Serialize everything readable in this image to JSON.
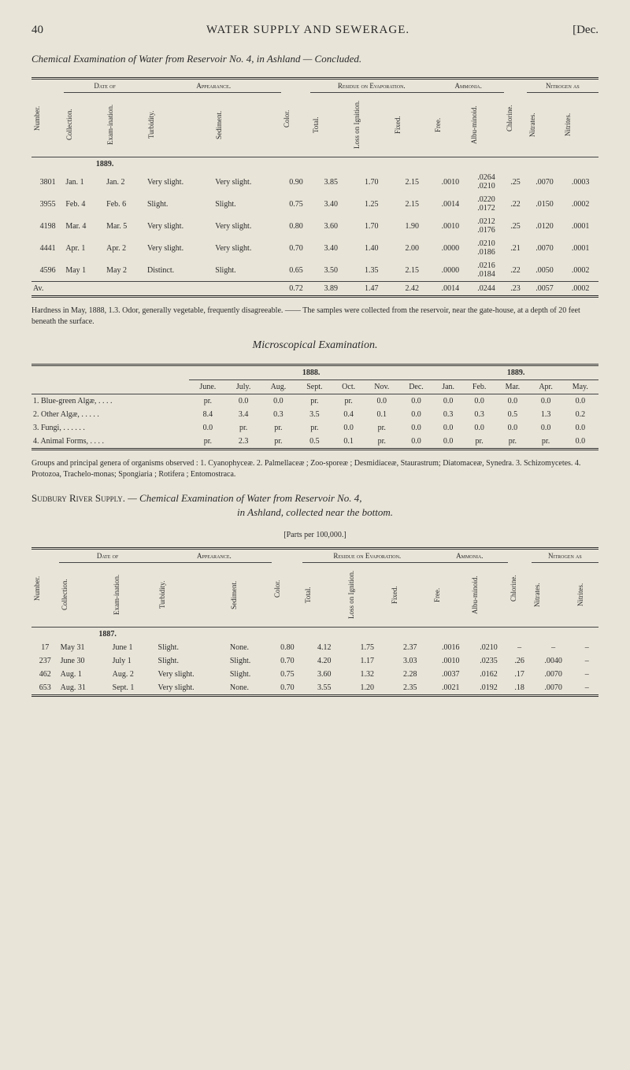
{
  "page": {
    "number": "40",
    "title": "WATER SUPPLY AND SEWERAGE.",
    "date_tag": "[Dec."
  },
  "title_line": "Chemical Examination of Water from Reservoir No. 4, in Ashland — Concluded.",
  "table1": {
    "group_heads": {
      "date_of": "Date of",
      "appearance": "Appearance.",
      "residue": "Residue on Evaporation.",
      "ammonia": "Ammonia.",
      "nitrogen": "Nitrogen as"
    },
    "cols": {
      "number": "Number.",
      "collection": "Collection.",
      "examination": "Exam-ination.",
      "turbidity": "Turbidity.",
      "sediment": "Sediment.",
      "color": "Color.",
      "total": "Total.",
      "loss": "Loss on Ignition.",
      "fixed": "Fixed.",
      "free": "Free.",
      "albuminoid": "Albu-minoid.",
      "chlorine": "Chlorine.",
      "nitrates": "Nitrates.",
      "nitrites": "Nitrites."
    },
    "year_tag": "1889.",
    "rows": [
      {
        "num": "3801",
        "coll": "Jan. 1",
        "exam": "Jan. 2",
        "turb": "Very slight.",
        "sed": "Very slight.",
        "col": "0.90",
        "tot": "3.85",
        "loss": "1.70",
        "fix": "2.15",
        "free": ".0010",
        "alb": ".0264\n.0210",
        "chl": ".25",
        "nitra": ".0070",
        "nitri": ".0003"
      },
      {
        "num": "3955",
        "coll": "Feb. 4",
        "exam": "Feb. 6",
        "turb": "Slight.",
        "sed": "Slight.",
        "col": "0.75",
        "tot": "3.40",
        "loss": "1.25",
        "fix": "2.15",
        "free": ".0014",
        "alb": ".0220\n.0172",
        "chl": ".22",
        "nitra": ".0150",
        "nitri": ".0002"
      },
      {
        "num": "4198",
        "coll": "Mar. 4",
        "exam": "Mar. 5",
        "turb": "Very slight.",
        "sed": "Very slight.",
        "col": "0.80",
        "tot": "3.60",
        "loss": "1.70",
        "fix": "1.90",
        "free": ".0010",
        "alb": ".0212\n.0176",
        "chl": ".25",
        "nitra": ".0120",
        "nitri": ".0001"
      },
      {
        "num": "4441",
        "coll": "Apr. 1",
        "exam": "Apr. 2",
        "turb": "Very slight.",
        "sed": "Very slight.",
        "col": "0.70",
        "tot": "3.40",
        "loss": "1.40",
        "fix": "2.00",
        "free": ".0000",
        "alb": ".0210\n.0186",
        "chl": ".21",
        "nitra": ".0070",
        "nitri": ".0001"
      },
      {
        "num": "4596",
        "coll": "May 1",
        "exam": "May 2",
        "turb": "Distinct.",
        "sed": "Slight.",
        "col": "0.65",
        "tot": "3.50",
        "loss": "1.35",
        "fix": "2.15",
        "free": ".0000",
        "alb": ".0216\n.0184",
        "chl": ".22",
        "nitra": ".0050",
        "nitri": ".0002"
      }
    ],
    "av": {
      "label": "Av.",
      "col": "0.72",
      "tot": "3.89",
      "loss": "1.47",
      "fix": "2.42",
      "free": ".0014",
      "alb": ".0244",
      "chl": ".23",
      "nitra": ".0057",
      "nitri": ".0002"
    }
  },
  "note1": "Hardness in May, 1888, 1.3. Odor, generally vegetable, frequently disagreeable. —— The samples were collected from the reservoir, near the gate-house, at a depth of 20 feet beneath the surface.",
  "section2_title": "Microscopical Examination.",
  "table2": {
    "year1": "1888.",
    "year2": "1889.",
    "months1": [
      "June.",
      "July.",
      "Aug.",
      "Sept.",
      "Oct.",
      "Nov.",
      "Dec."
    ],
    "months2": [
      "Jan.",
      "Feb.",
      "Mar.",
      "Apr.",
      "May."
    ],
    "rows": [
      {
        "label": "1. Blue-green Algæ, . . . .",
        "v": [
          "pr.",
          "0.0",
          "0.0",
          "pr.",
          "pr.",
          "0.0",
          "0.0",
          "0.0",
          "0.0",
          "0.0",
          "0.0",
          "0.0"
        ]
      },
      {
        "label": "2. Other Algæ, . . . . .",
        "v": [
          "8.4",
          "3.4",
          "0.3",
          "3.5",
          "0.4",
          "0.1",
          "0.0",
          "0.3",
          "0.3",
          "0.5",
          "1.3",
          "0.2"
        ]
      },
      {
        "label": "3. Fungi, . . . . . .",
        "v": [
          "0.0",
          "pr.",
          "pr.",
          "pr.",
          "0.0",
          "pr.",
          "0.0",
          "0.0",
          "0.0",
          "0.0",
          "0.0",
          "0.0"
        ]
      },
      {
        "label": "4. Animal Forms, . . . .",
        "v": [
          "pr.",
          "2.3",
          "pr.",
          "0.5",
          "0.1",
          "pr.",
          "0.0",
          "0.0",
          "pr.",
          "pr.",
          "pr.",
          "0.0"
        ]
      }
    ]
  },
  "note2": "Groups and principal genera of organisms observed : 1. Cyanophyceæ. 2. Palmellaceæ ; Zoo-sporeæ ; Desmidiaceæ, Staurastrum; Diatomaceæ, Synedra. 3. Schizomycetes. 4. Protozoa, Trachelo-monas; Spongiaria ; Rotifera ; Entomostraca.",
  "title_line3a": "Sudbury River Supply. — Chemical Examination of Water from Reservoir No. 4,",
  "title_line3b": "in Ashland, collected near the bottom.",
  "title_line3c": "[Parts per 100,000.]",
  "table3": {
    "year_tag": "1887.",
    "rows": [
      {
        "num": "17",
        "coll": "May 31",
        "exam": "June 1",
        "turb": "Slight.",
        "sed": "None.",
        "col": "0.80",
        "tot": "4.12",
        "loss": "1.75",
        "fix": "2.37",
        "free": ".0016",
        "alb": ".0210",
        "chl": "–",
        "nitra": "–",
        "nitri": "–"
      },
      {
        "num": "237",
        "coll": "June 30",
        "exam": "July 1",
        "turb": "Slight.",
        "sed": "Slight.",
        "col": "0.70",
        "tot": "4.20",
        "loss": "1.17",
        "fix": "3.03",
        "free": ".0010",
        "alb": ".0235",
        "chl": ".26",
        "nitra": ".0040",
        "nitri": "–"
      },
      {
        "num": "462",
        "coll": "Aug. 1",
        "exam": "Aug. 2",
        "turb": "Very slight.",
        "sed": "Slight.",
        "col": "0.75",
        "tot": "3.60",
        "loss": "1.32",
        "fix": "2.28",
        "free": ".0037",
        "alb": ".0162",
        "chl": ".17",
        "nitra": ".0070",
        "nitri": "–"
      },
      {
        "num": "653",
        "coll": "Aug. 31",
        "exam": "Sept. 1",
        "turb": "Very slight.",
        "sed": "None.",
        "col": "0.70",
        "tot": "3.55",
        "loss": "1.20",
        "fix": "2.35",
        "free": ".0021",
        "alb": ".0192",
        "chl": ".18",
        "nitra": ".0070",
        "nitri": "–"
      }
    ]
  }
}
